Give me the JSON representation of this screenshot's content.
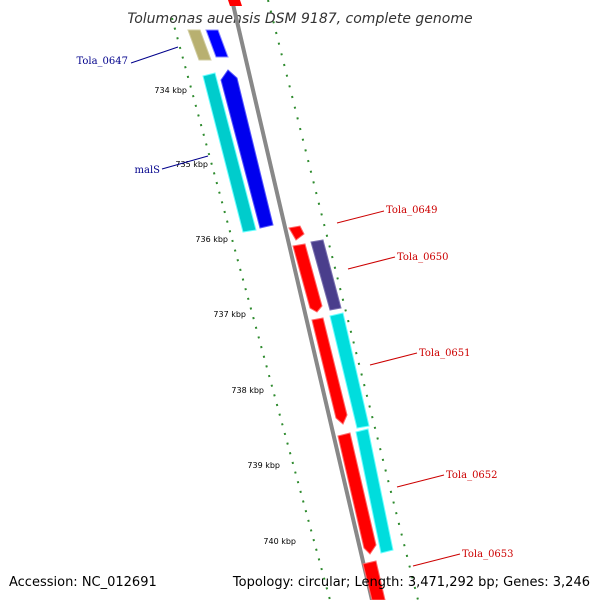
{
  "title": "Tolumonas auensis DSM 9187, complete genome",
  "footer": {
    "accession": "Accession: NC_012691",
    "stats": "Topology: circular; Length: 3,471,292 bp; Genes: 3,246"
  },
  "colors": {
    "reverse_strand_label": "#00008b",
    "forward_strand_label": "#cc0000",
    "backbone": "#888888",
    "ticks": "#2e8b2e",
    "cds_red": "#ff0000",
    "cds_blue": "#0000ff",
    "cds_cyan": "#00dddd",
    "cds_navy": "#4a3e8c",
    "cds_olive": "#b8b070"
  },
  "ticks": [
    {
      "label": "734 kbp"
    },
    {
      "label": "735 kbp"
    },
    {
      "label": "736 kbp"
    },
    {
      "label": "737 kbp"
    },
    {
      "label": "738 kbp"
    },
    {
      "label": "739 kbp"
    },
    {
      "label": "740 kbp"
    }
  ],
  "gene_labels": [
    {
      "text": "Tola_0647",
      "strand": "reverse"
    },
    {
      "text": "malS",
      "strand": "reverse"
    },
    {
      "text": "Tola_0649",
      "strand": "forward"
    },
    {
      "text": "Tola_0650",
      "strand": "forward"
    },
    {
      "text": "Tola_0651",
      "strand": "forward"
    },
    {
      "text": "Tola_0652",
      "strand": "forward"
    },
    {
      "text": "Tola_0653",
      "strand": "forward"
    }
  ]
}
